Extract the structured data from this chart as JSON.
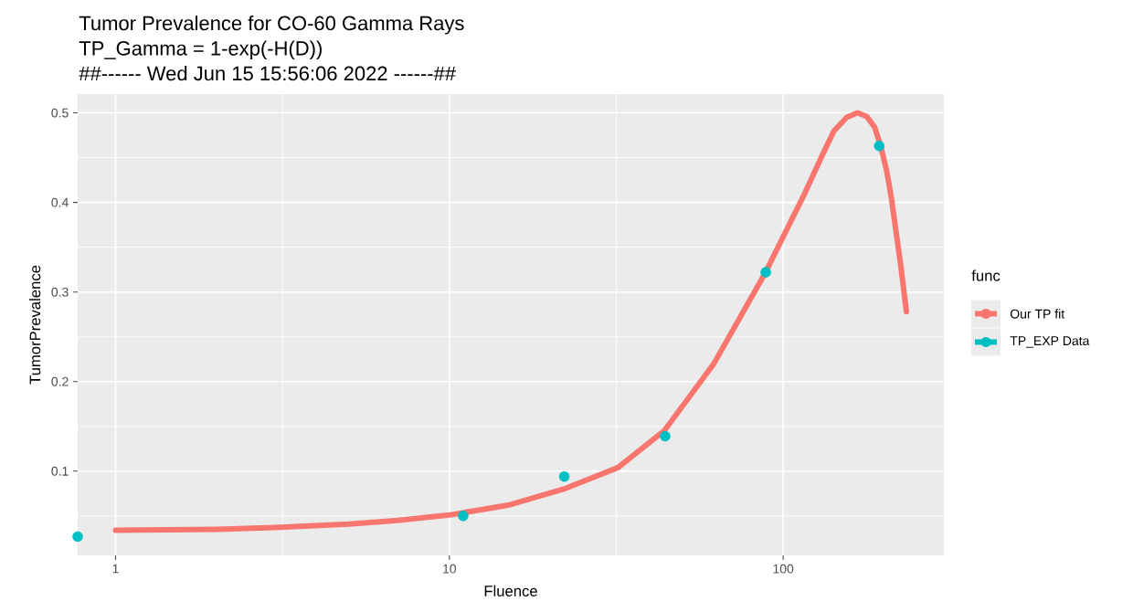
{
  "chart_data": {
    "type": "line",
    "title": "Tumor Prevalence for CO-60 Gamma Rays",
    "subtitle": "TP_Gamma = 1-exp(-H(D))",
    "annotations": [
      "##------ Wed Jun 15 15:56:06 2022 ------##"
    ],
    "xlabel": "Fluence",
    "ylabel": "TumorPrevalence",
    "legend_title": "func",
    "log": "x",
    "grid": true,
    "legend": "right",
    "xlim": [
      0.77,
      303
    ],
    "ylim": [
      0.006,
      0.521
    ],
    "xticks": [
      1,
      10,
      100
    ],
    "yticks": [
      0.1,
      0.2,
      0.3,
      0.4,
      0.5
    ],
    "series": [
      {
        "name": "Our TP fit",
        "marker": "none",
        "color": "#f8766d",
        "x": [
          1,
          2,
          3,
          5,
          7,
          10,
          15,
          22,
          32,
          44,
          62,
          88,
          116,
          130,
          142,
          155,
          167,
          178,
          188,
          196,
          204,
          211,
          217,
          225,
          234
        ],
        "values": [
          0.034,
          0.035,
          0.037,
          0.041,
          0.045,
          0.051,
          0.062,
          0.08,
          0.104,
          0.145,
          0.22,
          0.32,
          0.41,
          0.45,
          0.48,
          0.495,
          0.5,
          0.496,
          0.484,
          0.463,
          0.436,
          0.405,
          0.372,
          0.33,
          0.278
        ]
      },
      {
        "name": "TP_EXP Data",
        "type": "scatter",
        "marker": "circle",
        "color": "#00bfc4",
        "x": [
          0.77,
          11,
          22.1,
          44.3,
          88.7,
          194
        ],
        "values": [
          0.027,
          0.05,
          0.094,
          0.139,
          0.322,
          0.463
        ]
      }
    ]
  }
}
